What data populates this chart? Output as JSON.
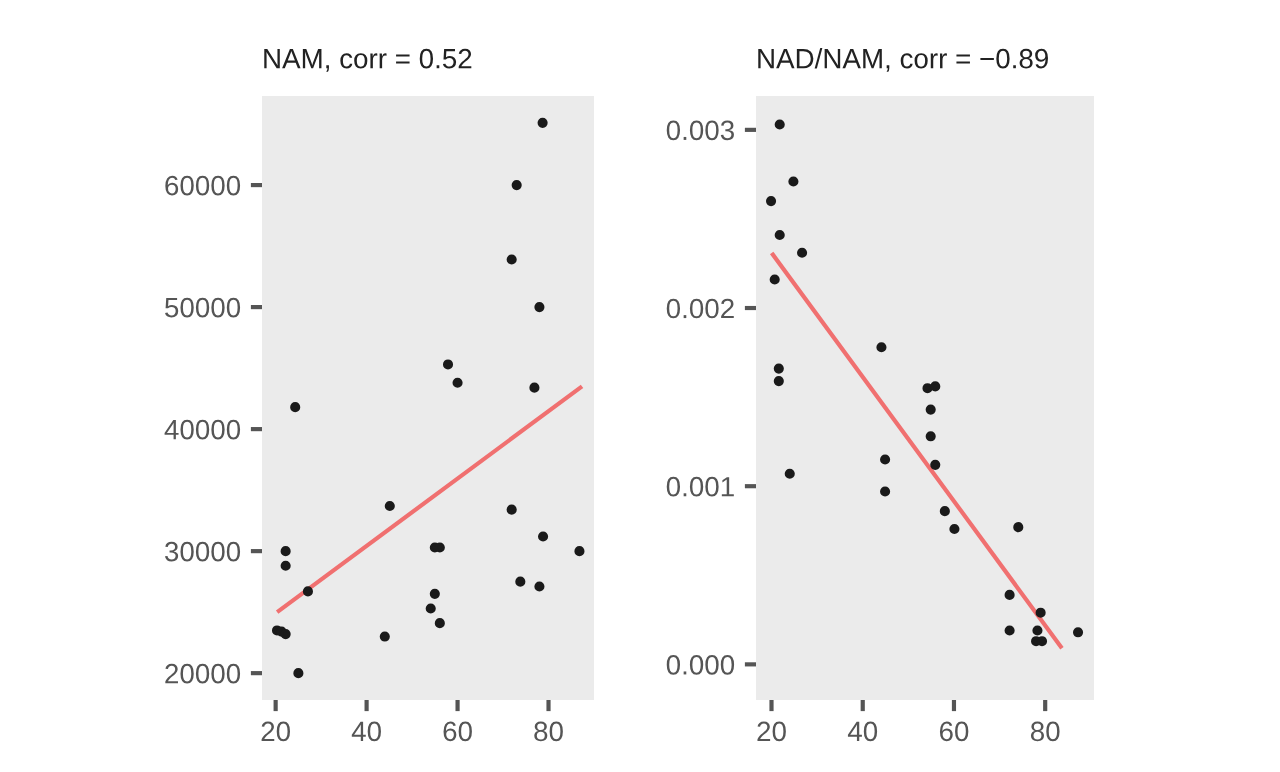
{
  "chart_data": [
    {
      "type": "scatter",
      "title": "NAM, corr = 0.52",
      "xlim": [
        17,
        90
      ],
      "xticks": [
        20,
        40,
        60,
        80
      ],
      "ylim": [
        17800,
        67300
      ],
      "yticks": [
        20000,
        30000,
        40000,
        50000,
        60000
      ],
      "grid": false,
      "series": [
        {
          "color": "#1a1a1a",
          "marker": "circle",
          "x": [
            78.7,
            73,
            71.9,
            78,
            57.9,
            60,
            76.9,
            24.3,
            45.1,
            71.9,
            78.8,
            86.8,
            22.2,
            22.2,
            55,
            56.1,
            27.1,
            73.8,
            78,
            55,
            54.1,
            56.1,
            20.3,
            21.3,
            22.2,
            44,
            25
          ],
          "values": [
            65100,
            60000,
            53900,
            50000,
            45300,
            43800,
            43400,
            41800,
            33700,
            33400,
            31200,
            30000,
            30000,
            28800,
            30300,
            30300,
            26700,
            27500,
            27100,
            26500,
            25300,
            24100,
            23500,
            23400,
            23200,
            23000,
            20000
          ]
        },
        {
          "type": "line",
          "marker": "none",
          "color": "#f07070",
          "x": [
            20.7,
            87
          ],
          "values": [
            25100,
            43400
          ]
        }
      ]
    },
    {
      "type": "scatter",
      "title": "NAD/NAM, corr = −0.89",
      "xlim": [
        16.6,
        90.7
      ],
      "xticks": [
        20,
        40,
        60,
        80
      ],
      "ylim": [
        -0.0002,
        0.00319
      ],
      "yticks": [
        {
          "value": 0,
          "label": "0.000"
        },
        {
          "value": 0.001,
          "label": "0.001"
        },
        {
          "value": 0.002,
          "label": "0.002"
        },
        {
          "value": 0.003,
          "label": "0.003"
        }
      ],
      "grid": false,
      "series": [
        {
          "color": "#1a1a1a",
          "marker": "circle",
          "x": [
            21.8,
            24.8,
            19.9,
            21.8,
            26.7,
            20.7,
            44.1,
            21.6,
            21.6,
            54.2,
            55.9,
            54.9,
            54.9,
            55.9,
            44.9,
            24,
            44.9,
            58,
            60.1,
            74.1,
            72.2,
            79,
            72.2,
            78.3,
            87.2,
            78,
            79.3
          ],
          "values": [
            0.00303,
            0.00271,
            0.0026,
            0.00241,
            0.00231,
            0.00216,
            0.00178,
            0.00166,
            0.00159,
            0.00155,
            0.00156,
            0.00143,
            0.00128,
            0.00112,
            0.00115,
            0.00107,
            0.00097,
            0.00086,
            0.00076,
            0.00077,
            0.00039,
            0.00029,
            0.00019,
            0.00019,
            0.00018,
            0.00013,
            0.00013
          ]
        },
        {
          "type": "line",
          "marker": "none",
          "color": "#f07070",
          "x": [
            20.3,
            83.4
          ],
          "values": [
            0.0023,
            0.0001
          ]
        }
      ]
    }
  ]
}
